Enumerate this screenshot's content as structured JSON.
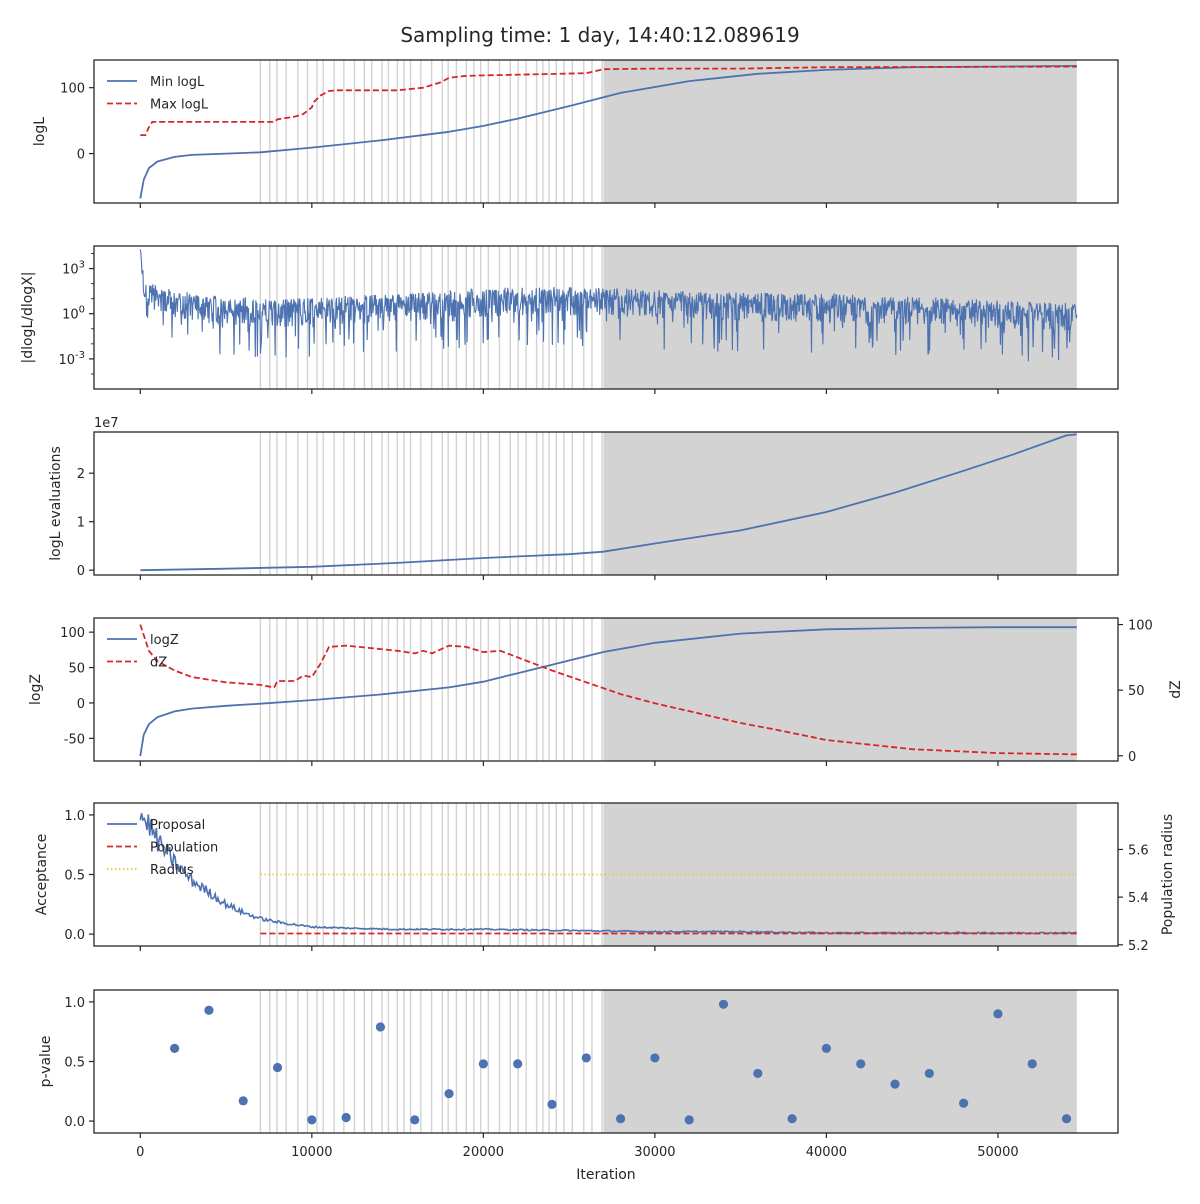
{
  "figure": {
    "title": "Sampling time: 1 day, 14:40:12.089619",
    "xlabel": "Iteration",
    "x_ticks": [
      0,
      10000,
      20000,
      30000,
      40000,
      50000
    ],
    "xlim": [
      -2700,
      57000
    ],
    "shading_start": 7000,
    "shading_dense_until": 27000,
    "shading_end": 54600,
    "shading_color": "#d3d3d3"
  },
  "chart_data": [
    {
      "type": "line",
      "panel": "logL",
      "ylabel": "logL",
      "ylim": [
        -75,
        142
      ],
      "y_ticks": [
        0,
        100
      ],
      "legend": "top-left",
      "series": [
        {
          "name": "Min logL",
          "color": "#4c72b0",
          "style": "solid",
          "x": [
            0,
            200,
            500,
            1000,
            2000,
            3000,
            5000,
            7000,
            10000,
            14000,
            18000,
            20000,
            22000,
            25000,
            28000,
            32000,
            36000,
            40000,
            45000,
            50000,
            54600
          ],
          "y": [
            -68,
            -40,
            -22,
            -12,
            -5,
            -2,
            0,
            2,
            9,
            20,
            33,
            42,
            53,
            72,
            92,
            110,
            121,
            127,
            131,
            132,
            133
          ]
        },
        {
          "name": "Max logL",
          "color": "#d62728",
          "style": "dashed",
          "x": [
            0,
            300,
            500,
            700,
            3000,
            7000,
            7800,
            8000,
            9000,
            9500,
            10000,
            10100,
            10500,
            11000,
            11500,
            15000,
            16500,
            17500,
            18000,
            19000,
            26000,
            27000,
            30000,
            35000,
            40000,
            54600
          ],
          "y": [
            28,
            28,
            40,
            48,
            48,
            48,
            48,
            52,
            56,
            60,
            70,
            78,
            88,
            95,
            96,
            96,
            100,
            108,
            115,
            118,
            122,
            128,
            129,
            129,
            131,
            132
          ]
        }
      ]
    },
    {
      "type": "line",
      "panel": "dlogL",
      "ylabel": "|dlogL/dlogX|",
      "yscale": "log",
      "y_tick_labels": [
        "10^3",
        "10^0",
        "10^-3"
      ],
      "y_tick_values": [
        1000,
        1,
        0.001
      ],
      "ylim_log10": [
        -5,
        4.5
      ],
      "series": [
        {
          "name": "",
          "color": "#4c72b0",
          "style": "solid",
          "noisy": true,
          "x": [
            0,
            100,
            300,
            1000,
            3000,
            5000,
            8000,
            12000,
            16000,
            20000,
            24000,
            28000,
            32000,
            36000,
            40000,
            44000,
            48000,
            52000,
            54600
          ],
          "y_median_log10": [
            4.2,
            2.6,
            1.6,
            1.0,
            0.6,
            0.3,
            0.2,
            0.4,
            0.6,
            0.9,
            1.0,
            0.9,
            0.7,
            0.6,
            0.5,
            0.4,
            0.2,
            0.0,
            -0.1
          ]
        }
      ]
    },
    {
      "type": "line",
      "panel": "evaluations",
      "ylabel": "logL evaluations",
      "offset_text": "1e7",
      "ylim": [
        -0.1,
        2.85
      ],
      "y_ticks": [
        0,
        1,
        2
      ],
      "series": [
        {
          "name": "",
          "color": "#4c72b0",
          "style": "solid",
          "x": [
            0,
            5000,
            10000,
            15000,
            20000,
            25000,
            27000,
            30000,
            35000,
            40000,
            44000,
            48000,
            51000,
            54000,
            54600
          ],
          "y": [
            0.0,
            0.03,
            0.07,
            0.15,
            0.25,
            0.33,
            0.38,
            0.55,
            0.82,
            1.2,
            1.6,
            2.05,
            2.4,
            2.78,
            2.8
          ]
        }
      ]
    },
    {
      "type": "line",
      "panel": "logZ",
      "ylabel": "logZ",
      "ylim": [
        -82,
        120
      ],
      "y_ticks": [
        -50,
        0,
        50,
        100
      ],
      "ylabel_right": "dZ",
      "ylim_right": [
        -4,
        105
      ],
      "y_ticks_right": [
        0,
        50,
        100
      ],
      "legend": "top-left",
      "series": [
        {
          "name": "logZ",
          "color": "#4c72b0",
          "style": "solid",
          "axis": "left",
          "x": [
            0,
            200,
            500,
            1000,
            2000,
            3000,
            5000,
            7000,
            10000,
            14000,
            18000,
            20000,
            22000,
            25000,
            27000,
            30000,
            35000,
            40000,
            45000,
            50000,
            54600
          ],
          "y": [
            -75,
            -45,
            -30,
            -20,
            -12,
            -8,
            -4,
            -1,
            4,
            12,
            22,
            30,
            42,
            60,
            72,
            85,
            98,
            104,
            106,
            107,
            107
          ]
        },
        {
          "name": "dZ",
          "color": "#d62728",
          "style": "dashed",
          "axis": "right",
          "x": [
            0,
            500,
            1000,
            2000,
            3000,
            4000,
            5000,
            6000,
            7000,
            7800,
            8000,
            9000,
            9500,
            10000,
            10500,
            11000,
            12000,
            15000,
            16000,
            16500,
            17000,
            18000,
            19000,
            20000,
            21000,
            22000,
            24000,
            26000,
            28000,
            30000,
            33000,
            35000,
            37000,
            40000,
            45000,
            50000,
            54600
          ],
          "y": [
            100,
            80,
            72,
            65,
            60,
            58,
            56,
            55,
            54,
            52,
            57,
            57,
            61,
            60,
            70,
            83,
            84,
            80,
            78,
            80,
            78,
            84,
            83,
            79,
            80,
            75,
            65,
            56,
            47,
            40,
            31,
            25,
            20,
            12,
            5,
            2,
            1
          ]
        }
      ]
    },
    {
      "type": "line",
      "panel": "acceptance",
      "ylabel": "Acceptance",
      "ylim": [
        -0.1,
        1.1
      ],
      "y_ticks": [
        0.0,
        0.5,
        1.0
      ],
      "ylabel_right": "Population radius",
      "ylim_right": [
        5.195,
        5.795
      ],
      "y_ticks_right": [
        5.2,
        5.4,
        5.6
      ],
      "legend": "top-left",
      "series": [
        {
          "name": "Proposal",
          "color": "#4c72b0",
          "style": "solid",
          "axis": "left",
          "x": [
            0,
            500,
            1000,
            2000,
            3000,
            4000,
            5000,
            6000,
            7000,
            8000,
            10000,
            12000,
            15000,
            20000,
            25000,
            30000,
            35000,
            40000,
            45000,
            50000,
            54600
          ],
          "y": [
            1.0,
            0.92,
            0.78,
            0.6,
            0.45,
            0.35,
            0.25,
            0.18,
            0.13,
            0.1,
            0.06,
            0.05,
            0.04,
            0.04,
            0.03,
            0.02,
            0.02,
            0.01,
            0.01,
            0.01,
            0.01
          ]
        },
        {
          "name": "Population",
          "color": "#d62728",
          "style": "dashed",
          "axis": "left",
          "x": [
            7000,
            54600
          ],
          "y": [
            0.005,
            0.005
          ]
        },
        {
          "name": "Radius",
          "color": "#f2c12e",
          "style": "dotted",
          "axis": "left",
          "x": [
            7000,
            54600
          ],
          "y": [
            0.5,
            0.5
          ]
        }
      ]
    },
    {
      "type": "scatter",
      "panel": "pvalue",
      "ylabel": "p-value",
      "ylim": [
        -0.1,
        1.1
      ],
      "y_ticks": [
        0.0,
        0.5,
        1.0
      ],
      "series": [
        {
          "name": "",
          "color": "#4c72b0",
          "x": [
            2000,
            4000,
            6000,
            8000,
            10000,
            12000,
            14000,
            16000,
            18000,
            20000,
            22000,
            24000,
            26000,
            28000,
            30000,
            32000,
            34000,
            36000,
            38000,
            40000,
            42000,
            44000,
            46000,
            48000,
            50000,
            52000,
            54000
          ],
          "y": [
            0.61,
            0.93,
            0.17,
            0.45,
            0.01,
            0.03,
            0.79,
            0.01,
            0.23,
            0.48,
            0.48,
            0.14,
            0.53,
            0.02,
            0.53,
            0.01,
            0.98,
            0.4,
            0.02,
            0.61,
            0.48,
            0.31,
            0.4,
            0.15,
            0.9,
            0.48,
            0.02
          ]
        }
      ]
    }
  ]
}
